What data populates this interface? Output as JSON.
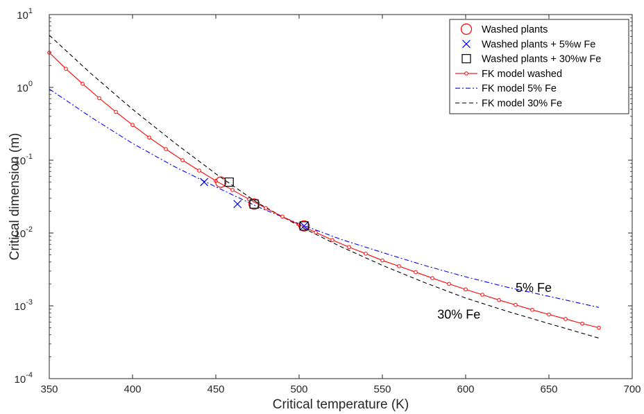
{
  "chart_data": {
    "type": "line",
    "title": "",
    "xlabel": "Critical temperature (K)",
    "ylabel": "Critical dimension (m)",
    "xlim": [
      350,
      700
    ],
    "ylim": [
      0.0001,
      10
    ],
    "yscale": "log",
    "xticks": [
      {
        "value": 350,
        "label": "350"
      },
      {
        "value": 400,
        "label": "400"
      },
      {
        "value": 450,
        "label": "450"
      },
      {
        "value": 500,
        "label": "500"
      },
      {
        "value": 550,
        "label": "550"
      },
      {
        "value": 600,
        "label": "600"
      },
      {
        "value": 650,
        "label": "650"
      },
      {
        "value": 700,
        "label": "700"
      }
    ],
    "yticks": [
      {
        "value": 0.0001,
        "base": "10",
        "exp": "-4"
      },
      {
        "value": 0.001,
        "base": "10",
        "exp": "-3"
      },
      {
        "value": 0.01,
        "base": "10",
        "exp": "-2"
      },
      {
        "value": 0.1,
        "base": "10",
        "exp": "-1"
      },
      {
        "value": 1,
        "base": "10",
        "exp": "0"
      },
      {
        "value": 10,
        "base": "10",
        "exp": "1"
      }
    ],
    "grid": false,
    "legend_position": "top-right",
    "series": [
      {
        "name": "Washed plants",
        "kind": "scatter",
        "marker": "circle",
        "color": "#ff0000",
        "points": [
          [
            453,
            0.05
          ],
          [
            473,
            0.025
          ],
          [
            503,
            0.0125
          ]
        ]
      },
      {
        "name": "Washed plants + 5%w Fe",
        "kind": "scatter",
        "marker": "x",
        "color": "#0000ff",
        "points": [
          [
            443,
            0.05
          ],
          [
            463,
            0.025
          ],
          [
            503,
            0.0125
          ]
        ]
      },
      {
        "name": "Washed plants + 30%w Fe",
        "kind": "scatter",
        "marker": "square",
        "color": "#000000",
        "points": [
          [
            458,
            0.05
          ],
          [
            473,
            0.025
          ],
          [
            503,
            0.0125
          ]
        ]
      },
      {
        "name": "FK model washed",
        "kind": "line",
        "dash": "solid",
        "marker": "small-circle",
        "color": "#ff0000",
        "points": [
          [
            350,
            3.0
          ],
          [
            360,
            1.8
          ],
          [
            370,
            1.12
          ],
          [
            380,
            0.71
          ],
          [
            390,
            0.46
          ],
          [
            400,
            0.305
          ],
          [
            410,
            0.205
          ],
          [
            420,
            0.142
          ],
          [
            430,
            0.1
          ],
          [
            440,
            0.072
          ],
          [
            450,
            0.052
          ],
          [
            460,
            0.039
          ],
          [
            470,
            0.029
          ],
          [
            480,
            0.022
          ],
          [
            490,
            0.0168
          ],
          [
            500,
            0.013
          ],
          [
            510,
            0.0102
          ],
          [
            520,
            0.008
          ],
          [
            530,
            0.0064
          ],
          [
            540,
            0.0052
          ],
          [
            550,
            0.0042
          ],
          [
            560,
            0.0035
          ],
          [
            570,
            0.0029
          ],
          [
            580,
            0.0024
          ],
          [
            590,
            0.002
          ],
          [
            600,
            0.00168
          ],
          [
            610,
            0.00142
          ],
          [
            620,
            0.0012
          ],
          [
            630,
            0.00103
          ],
          [
            640,
            0.00088
          ],
          [
            650,
            0.00076
          ],
          [
            660,
            0.00066
          ],
          [
            670,
            0.00057
          ],
          [
            680,
            0.0005
          ]
        ]
      },
      {
        "name": "FK model 5% Fe",
        "kind": "line",
        "dash": "dashdot",
        "color": "#0000ff",
        "points": [
          [
            350,
            0.95
          ],
          [
            375,
            0.39
          ],
          [
            400,
            0.17
          ],
          [
            425,
            0.082
          ],
          [
            450,
            0.043
          ],
          [
            475,
            0.023
          ],
          [
            500,
            0.0134
          ],
          [
            525,
            0.0082
          ],
          [
            550,
            0.0054
          ],
          [
            575,
            0.0036
          ],
          [
            600,
            0.0025
          ],
          [
            625,
            0.0018
          ],
          [
            650,
            0.00135
          ],
          [
            680,
            0.00095
          ]
        ]
      },
      {
        "name": "FK model 30% Fe",
        "kind": "line",
        "dash": "dashed",
        "color": "#000000",
        "points": [
          [
            350,
            5.2
          ],
          [
            375,
            1.55
          ],
          [
            400,
            0.5
          ],
          [
            425,
            0.175
          ],
          [
            450,
            0.065
          ],
          [
            475,
            0.026
          ],
          [
            500,
            0.0125
          ],
          [
            525,
            0.0065
          ],
          [
            550,
            0.0036
          ],
          [
            575,
            0.0021
          ],
          [
            600,
            0.00128
          ],
          [
            625,
            0.00084
          ],
          [
            650,
            0.00057
          ],
          [
            680,
            0.00036
          ]
        ]
      }
    ],
    "annotations": [
      {
        "text": "5% Fe",
        "x": 630,
        "y": 0.00155
      },
      {
        "text": "30% Fe",
        "x": 583,
        "y": 0.00067
      }
    ]
  }
}
